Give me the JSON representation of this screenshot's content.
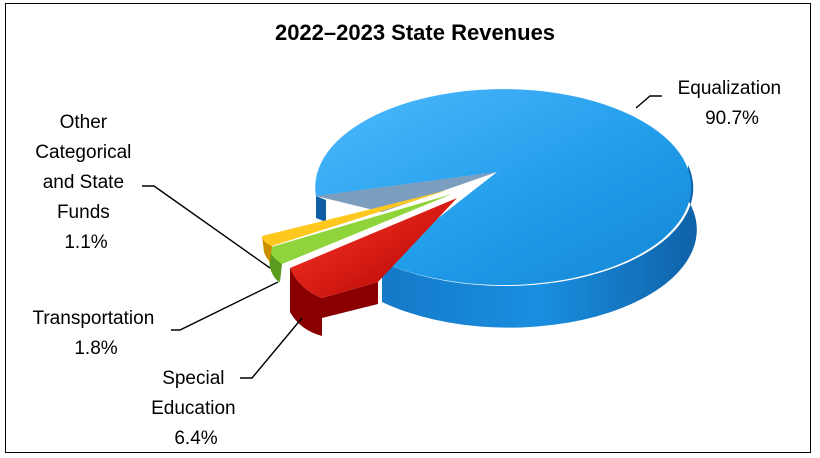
{
  "chart_data": {
    "type": "pie",
    "title": "2022–2023 State Revenues",
    "slices": [
      {
        "name": "Equalization",
        "value": 90.7,
        "label": "90.7%",
        "color": "#1f9be8"
      },
      {
        "name": "Special Education",
        "value": 6.4,
        "label": "6.4%",
        "color": "#d90f0f"
      },
      {
        "name": "Transportation",
        "value": 1.8,
        "label": "1.8%",
        "color": "#7fc832"
      },
      {
        "name": "Other Categorical and State Funds",
        "value": 1.1,
        "label": "1.1%",
        "color": "#f0b800"
      }
    ],
    "style": "3d-exploded",
    "legend": "none"
  },
  "labels": {
    "equalization": [
      "Equalization",
      "90.7%"
    ],
    "other": [
      "Other",
      "Categorical",
      "and State",
      "Funds",
      "1.1%"
    ],
    "transportation": [
      "Transportation",
      "1.8%"
    ],
    "special": [
      "Special",
      "Education",
      "6.4%"
    ]
  }
}
